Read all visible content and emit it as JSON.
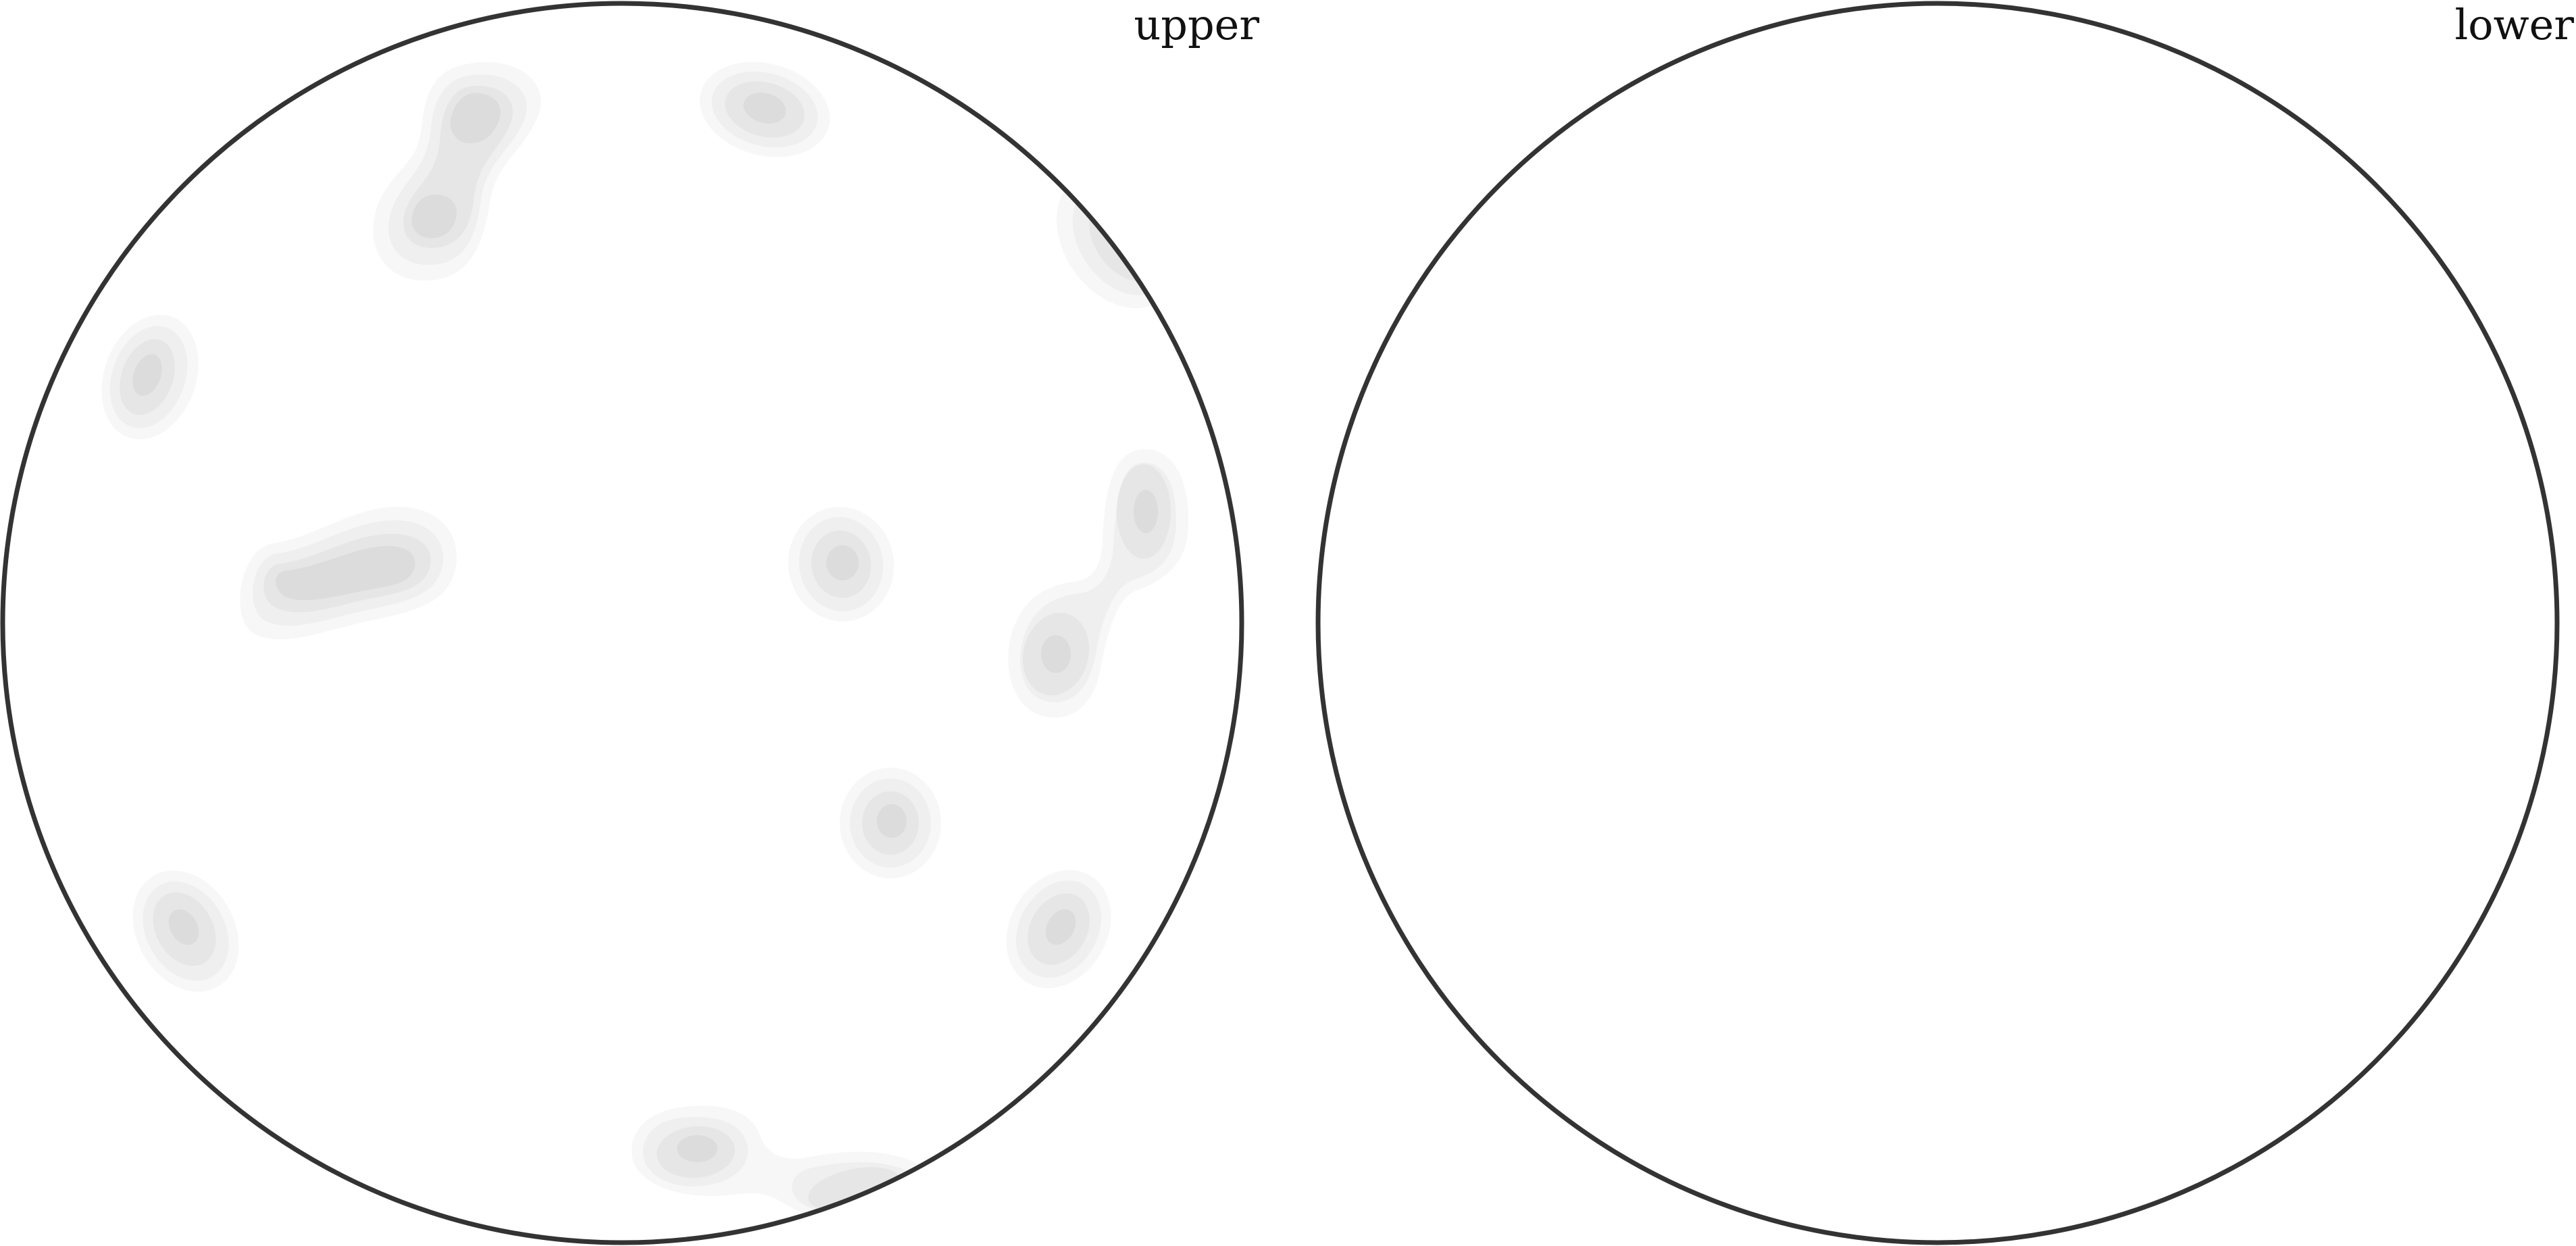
{
  "panels": [
    {
      "id": "upper",
      "label": "upper"
    },
    {
      "id": "lower",
      "label": "lower"
    }
  ],
  "colors": {
    "outline": "#333333",
    "contour_levels": [
      "#f7f7f7",
      "#efefef",
      "#e6e6e6",
      "#dcdcdc"
    ]
  }
}
